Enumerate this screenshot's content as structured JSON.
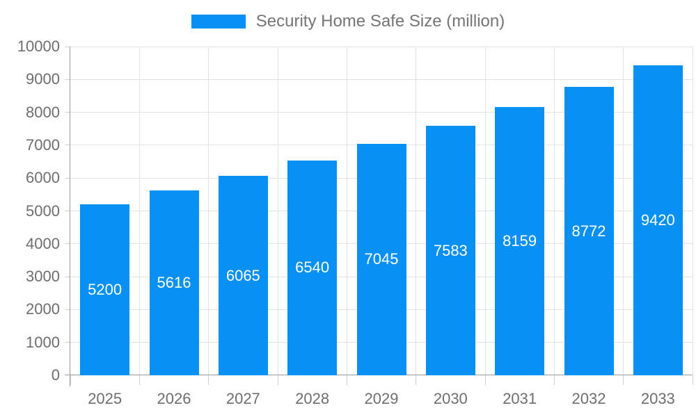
{
  "chart_data": {
    "type": "bar",
    "title": "Security Home Safe Size (million)",
    "categories": [
      "2025",
      "2026",
      "2027",
      "2028",
      "2029",
      "2030",
      "2031",
      "2032",
      "2033"
    ],
    "values": [
      5200,
      5616,
      6065,
      6540,
      7045,
      7583,
      8159,
      8772,
      9420
    ],
    "xlabel": "",
    "ylabel": "",
    "ylim": [
      0,
      10000
    ],
    "yticks": [
      0,
      1000,
      2000,
      3000,
      4000,
      5000,
      6000,
      7000,
      8000,
      9000,
      10000
    ],
    "grid": true,
    "legend_position": "top",
    "bar_labels_inside": true
  },
  "legend": {
    "label": "Security Home Safe Size (million)"
  },
  "colors": {
    "bar": "#0990F4",
    "grid": "#E3E3E3",
    "axis": "#9B9B9B",
    "tick": "#CFCFCF",
    "axis_text": "#6E6E6E",
    "legend_text": "#757575",
    "bar_label": "#FFFFFF"
  }
}
